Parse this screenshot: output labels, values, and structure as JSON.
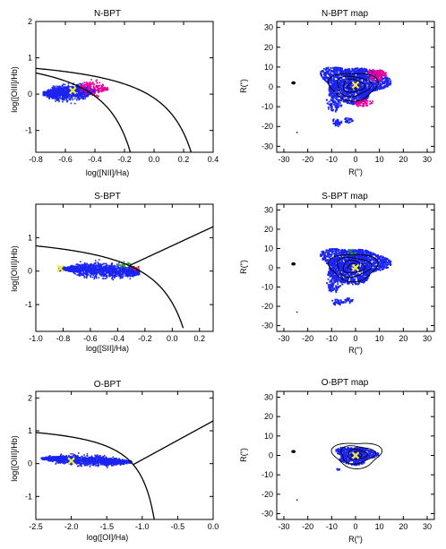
{
  "colors": {
    "points": "#1b24f0",
    "comp_oi": "#e8009a",
    "comp_sii": "#2a9a2a",
    "agn_sii": "#e81818",
    "center_marker": "#f4ec3a",
    "frame": "#000000"
  },
  "chart_data": [
    {
      "type": "scatter",
      "title": "N-BPT",
      "xlabel": "log([NII]/Ha)",
      "ylabel": "log([OIII]/Hb)",
      "xlim": [
        -0.8,
        0.4
      ],
      "ylim": [
        -1.6,
        2.0
      ],
      "xticks": [
        "-0.8",
        "-0.6",
        "-0.4",
        "-0.2",
        "0.0",
        "0.2",
        "0.4"
      ],
      "yticks": [
        "-1",
        "0",
        "1",
        "2"
      ],
      "xtick_values": [
        -0.8,
        -0.6,
        -0.4,
        -0.2,
        0.0,
        0.2,
        0.4
      ],
      "ytick_values": [
        -1,
        0,
        1,
        2
      ],
      "curves": [
        {
          "name": "kauffmann",
          "formula": "0.61/(x-0.05)+1.3",
          "xmax": -0.12
        },
        {
          "name": "kewley",
          "formula": "0.61/(x-0.47)+1.19",
          "xmax": 0.28
        }
      ],
      "clouds": [
        {
          "color": "points",
          "n": 1500,
          "x": [
            -0.75,
            -0.4
          ],
          "xc": -0.575,
          "yc": 0.05,
          "ysd": 0.1,
          "tilt": 0.2
        },
        {
          "color": "comp_oi",
          "n": 190,
          "x": [
            -0.5,
            -0.31
          ],
          "xc": -0.42,
          "yc": 0.18,
          "ysd": 0.1,
          "tilt": -0.35
        }
      ],
      "marker": {
        "x": -0.55,
        "y": 0.1
      }
    },
    {
      "type": "scatter",
      "title": "S-BPT",
      "xlabel": "log([SII]/Ha)",
      "ylabel": "log([OIII]/Hb)",
      "xlim": [
        -1.0,
        0.3
      ],
      "ylim": [
        -1.8,
        2.0
      ],
      "xticks": [
        "-1.0",
        "-0.8",
        "-0.6",
        "-0.4",
        "-0.2",
        "0.0",
        "0.2"
      ],
      "yticks": [
        "-1",
        "0",
        "1"
      ],
      "xtick_values": [
        -1.0,
        -0.8,
        -0.6,
        -0.4,
        -0.2,
        0.0,
        0.2
      ],
      "ytick_values": [
        -1,
        0,
        1
      ],
      "curves": [
        {
          "name": "kewley",
          "formula": "0.72/(x-0.32)+1.30",
          "xmax": 0.08
        },
        {
          "name": "seyfert-liner",
          "formula": "1.89*x+0.76",
          "xmin": -0.315,
          "xmax": 0.3
        }
      ],
      "clouds": [
        {
          "color": "points",
          "n": 1500,
          "x": [
            -0.83,
            -0.24
          ],
          "xc": -0.5,
          "yc": 0.02,
          "ysd": 0.1,
          "tilt": -0.18
        },
        {
          "color": "comp_sii",
          "n": 28,
          "x": [
            -0.4,
            -0.3
          ],
          "xc": -0.35,
          "yc": 0.19,
          "ysd": 0.05,
          "tilt": 0
        },
        {
          "color": "agn_sii",
          "n": 14,
          "x": [
            -0.3,
            -0.24
          ],
          "xc": -0.27,
          "yc": 0.11,
          "ysd": 0.05,
          "tilt": 0
        }
      ],
      "marker": {
        "x": -0.82,
        "y": 0.08
      }
    },
    {
      "type": "scatter",
      "title": "O-BPT",
      "xlabel": "log([OI]/Ha)",
      "ylabel": "log([OIII]/Hb)",
      "xlim": [
        -2.5,
        0.0
      ],
      "ylim": [
        -1.7,
        2.2
      ],
      "xticks": [
        "-2.5",
        "-2.0",
        "-1.5",
        "-1.0",
        "-0.5",
        "0.0"
      ],
      "yticks": [
        "-1",
        "0",
        "1",
        "2"
      ],
      "xtick_values": [
        -2.5,
        -2.0,
        -1.5,
        -1.0,
        -0.5,
        0.0
      ],
      "ytick_values": [
        -1,
        0,
        1,
        2
      ],
      "curves": [
        {
          "name": "kewley",
          "formula": "0.73/(x+0.59)+1.33",
          "xmax": -0.8
        },
        {
          "name": "seyfert-liner",
          "formula": "1.18*x+1.30",
          "xmin": -1.13,
          "xmax": 0.0
        }
      ],
      "clouds": [
        {
          "color": "points",
          "n": 1500,
          "x": [
            -2.42,
            -1.15
          ],
          "xc": -1.78,
          "yc": 0.1,
          "ysd": 0.07,
          "tilt": -0.09
        }
      ],
      "marker": {
        "x": -2.0,
        "y": 0.08
      }
    },
    {
      "type": "scatter",
      "title": "N-BPT map",
      "xlabel": "R(\")",
      "ylabel": "R(\")",
      "xlim": [
        -33,
        33
      ],
      "ylim": [
        -33,
        33
      ],
      "xticks": [
        "-30",
        "-20",
        "-10",
        "0",
        "10",
        "20",
        "30"
      ],
      "yticks": [
        "-30",
        "-20",
        "-10",
        "0",
        "10",
        "20",
        "30"
      ],
      "xtick_values": [
        -30,
        -20,
        -10,
        0,
        10,
        20,
        30
      ],
      "ytick_values": [
        -30,
        -20,
        -10,
        0,
        10,
        20,
        30
      ],
      "map": "full",
      "marker": {
        "x": 0,
        "y": 1
      }
    },
    {
      "type": "scatter",
      "title": "S-BPT map",
      "xlabel": "R(\")",
      "ylabel": "R(\")",
      "xlim": [
        -33,
        33
      ],
      "ylim": [
        -33,
        33
      ],
      "xticks": [
        "-30",
        "-20",
        "-10",
        "0",
        "10",
        "20",
        "30"
      ],
      "yticks": [
        "-30",
        "-20",
        "-10",
        "0",
        "10",
        "20",
        "30"
      ],
      "xtick_values": [
        -30,
        -20,
        -10,
        0,
        10,
        20,
        30
      ],
      "ytick_values": [
        -30,
        -20,
        -10,
        0,
        10,
        20,
        30
      ],
      "map": "full",
      "marker": {
        "x": 0,
        "y": 0
      }
    },
    {
      "type": "scatter",
      "title": "O-BPT map",
      "xlabel": "R(\")",
      "ylabel": "R(\")",
      "xlim": [
        -33,
        33
      ],
      "ylim": [
        -33,
        33
      ],
      "xticks": [
        "-30",
        "-20",
        "-10",
        "0",
        "10",
        "20",
        "30"
      ],
      "yticks": [
        "-30",
        "-20",
        "-10",
        "0",
        "10",
        "20",
        "30"
      ],
      "xtick_values": [
        -30,
        -20,
        -10,
        0,
        10,
        20,
        30
      ],
      "ytick_values": [
        -30,
        -20,
        -10,
        0,
        10,
        20,
        30
      ],
      "map": "small",
      "marker": {
        "x": 0,
        "y": 0
      }
    }
  ]
}
